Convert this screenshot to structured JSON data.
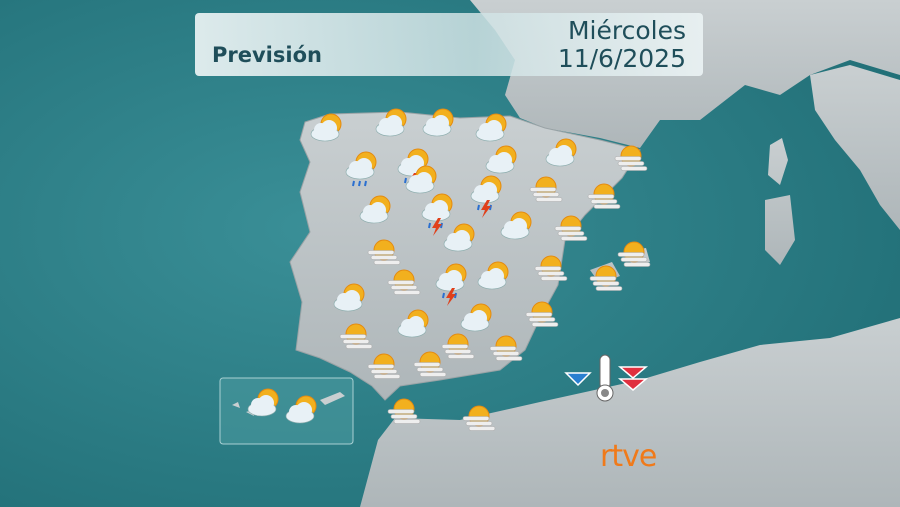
{
  "header": {
    "title": "Previsión",
    "day": "Miércoles",
    "date": "11/6/2025"
  },
  "logo": "rtve"
}
